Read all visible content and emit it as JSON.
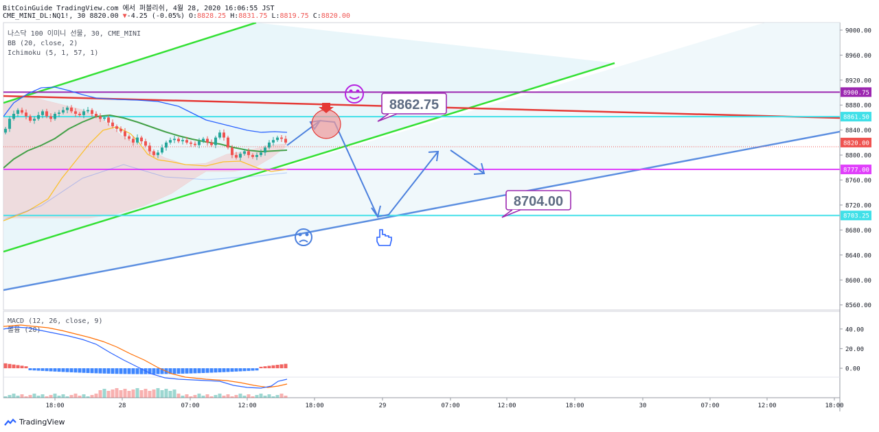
{
  "header": {
    "publish_line": "BitCoinGuide TradingView.com 에서 퍼블리쉬, 4월 28, 2020 16:06:55 JST",
    "symbol": "CME_MINI_DL:NQ1!, 30",
    "last": "8820.00",
    "change_arrow": "▼",
    "change": "-4.25 (-0.05%)",
    "open_label": "O:",
    "open": "8828.25",
    "high_label": "H:",
    "high": "8831.75",
    "low_label": "L:",
    "low": "8819.75",
    "close_label": "C:",
    "close": "8820.00"
  },
  "legend": {
    "title": "나스닥 100 이미니 선물, 30, CME_MINI",
    "bb": "BB (20, close, 2)",
    "ichimoku": "Ichimoku (5, 1, 57, 1)",
    "macd": "MACD (12, 26, close, 9)",
    "volume": "볼륨 (20)"
  },
  "footer": {
    "brand": "TradingView",
    "logo_icon": "tradingview-logo-icon"
  },
  "colors": {
    "up": "#26a69a",
    "down": "#ef5350",
    "bb": "#2962ff",
    "basis": "#43a047",
    "tenkan": "#fbc02d",
    "green_channel": "#33e033",
    "red_trend": "#e53935",
    "blue_trend": "#5b8ee0",
    "purple": "#9c27b0",
    "magenta": "#e040fb",
    "cyan": "#40e0e8",
    "macd_line": "#2962ff",
    "signal_line": "#ff6d00"
  },
  "chart_data": {
    "type": "candlestick",
    "symbol": "CME_MINI_DL:NQ1!",
    "interval": "30",
    "price_axis": {
      "range": [
        8552,
        9012
      ],
      "ticks": [
        9000,
        8960,
        8920,
        8880,
        8840,
        8800,
        8760,
        8720,
        8680,
        8640,
        8600,
        8560
      ]
    },
    "time_axis": {
      "labels": [
        "18:00",
        "28",
        "07:00",
        "12:00",
        "18:00",
        "29",
        "07:00",
        "12:00",
        "18:00",
        "30",
        "07:00",
        "12:00",
        "18:00"
      ]
    },
    "price_labels": [
      {
        "value": "8900.75",
        "color": "#9c27b0"
      },
      {
        "value": "8861.50",
        "color": "#40e0e8"
      },
      {
        "value": "8820.00",
        "color": "#ef5350"
      },
      {
        "value": "8777.00",
        "color": "#e040fb"
      },
      {
        "value": "8703.25",
        "color": "#40e0e8"
      }
    ],
    "horizontal_levels": [
      {
        "price": 8900.75,
        "color": "#9c27b0"
      },
      {
        "price": 8861.5,
        "color": "#40e0e8"
      },
      {
        "price": 8777.0,
        "color": "#e040fb"
      },
      {
        "price": 8703.25,
        "color": "#40e0e8"
      }
    ],
    "annotations": [
      {
        "text": "8862.75",
        "price": 8862.75
      },
      {
        "text": "8704.00",
        "price": 8704.0
      }
    ],
    "closes": [
      8842,
      8858,
      8866,
      8872,
      8868,
      8862,
      8855,
      8858,
      8864,
      8870,
      8862,
      8858,
      8866,
      8868,
      8872,
      8876,
      8870,
      8866,
      8864,
      8870,
      8872,
      8866,
      8862,
      8858,
      8860,
      8852,
      8846,
      8842,
      8838,
      8830,
      8826,
      8820,
      8828,
      8822,
      8815,
      8806,
      8800,
      8804,
      8812,
      8820,
      8824,
      8826,
      8822,
      8824,
      8820,
      8818,
      8816,
      8822,
      8826,
      8820,
      8816,
      8828,
      8836,
      8828,
      8812,
      8800,
      8796,
      8802,
      8806,
      8800,
      8797,
      8800,
      8804,
      8812,
      8820,
      8824,
      8828,
      8826,
      8820
    ],
    "macd": {
      "ylim": [
        -30,
        58
      ],
      "ticks": [
        40,
        20,
        0
      ]
    }
  }
}
